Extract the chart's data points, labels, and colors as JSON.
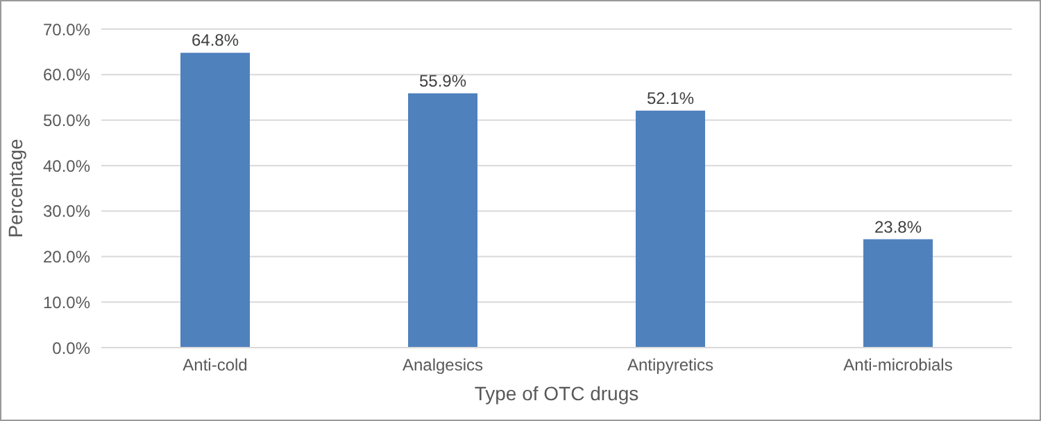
{
  "chart_data": {
    "type": "bar",
    "xlabel": "Type of OTC drugs",
    "ylabel": "Percentage",
    "categories": [
      "Anti-cold",
      "Analgesics",
      "Antipyretics",
      "Anti-microbials"
    ],
    "values": [
      64.8,
      55.9,
      52.1,
      23.8
    ],
    "value_labels": [
      "64.8%",
      "55.9%",
      "52.1%",
      "23.8%"
    ],
    "color": "#4f81bd",
    "ylim": [
      0,
      70
    ],
    "yticks": [
      {
        "value": 0,
        "label": "0.0%"
      },
      {
        "value": 10,
        "label": "10.0%"
      },
      {
        "value": 20,
        "label": "20.0%"
      },
      {
        "value": 30,
        "label": "30.0%"
      },
      {
        "value": 40,
        "label": "40.0%"
      },
      {
        "value": 50,
        "label": "50.0%"
      },
      {
        "value": 60,
        "label": "60.0%"
      },
      {
        "value": 70,
        "label": "70.0%"
      }
    ],
    "grid": "y"
  }
}
